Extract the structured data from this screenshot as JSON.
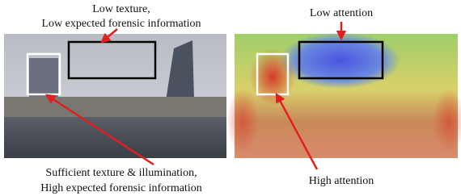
{
  "left_panel": {
    "top_annotation": [
      "Low texture,",
      "Low expected forensic information"
    ],
    "bottom_annotation": [
      "Sufficient texture & illumination,",
      "High expected forensic information"
    ]
  },
  "right_panel": {
    "top_annotation": "Low attention",
    "bottom_annotation": "High attention"
  }
}
